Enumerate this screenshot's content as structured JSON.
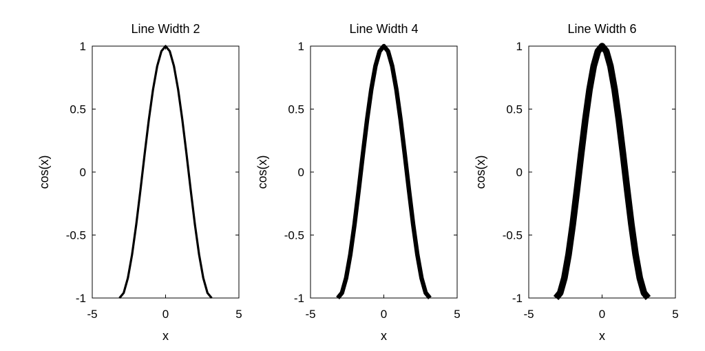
{
  "chart_data": [
    {
      "type": "line",
      "title": "Line Width 2",
      "xlabel": "x",
      "ylabel": "cos(x)",
      "xlim": [
        -5,
        5
      ],
      "ylim": [
        -1,
        1
      ],
      "xticks": [
        "-5",
        "0",
        "5"
      ],
      "yticks": [
        "-1",
        "-0.5",
        "0",
        "0.5",
        "1"
      ],
      "line_width": 2,
      "color": "#000000",
      "grid": false,
      "x": [
        -3.1416,
        -2.856,
        -2.5704,
        -2.2848,
        -1.9992,
        -1.7136,
        -1.428,
        -1.1424,
        -0.8568,
        -0.5712,
        -0.2856,
        0.0,
        0.2856,
        0.5712,
        0.8568,
        1.1424,
        1.428,
        1.7136,
        1.9992,
        2.2848,
        2.5704,
        2.856,
        3.1416
      ],
      "y": [
        -1.0,
        -0.9595,
        -0.8413,
        -0.6549,
        -0.4154,
        -0.1423,
        0.1423,
        0.4154,
        0.6549,
        0.8413,
        0.9595,
        1.0,
        0.9595,
        0.8413,
        0.6549,
        0.4154,
        0.1423,
        -0.1423,
        -0.4154,
        -0.6549,
        -0.8413,
        -0.9595,
        -1.0
      ]
    },
    {
      "type": "line",
      "title": "Line Width 4",
      "xlabel": "x",
      "ylabel": "cos(x)",
      "xlim": [
        -5,
        5
      ],
      "ylim": [
        -1,
        1
      ],
      "xticks": [
        "-5",
        "0",
        "5"
      ],
      "yticks": [
        "-1",
        "-0.5",
        "0",
        "0.5",
        "1"
      ],
      "line_width": 4,
      "color": "#000000",
      "grid": false,
      "x": [
        -3.1416,
        -2.856,
        -2.5704,
        -2.2848,
        -1.9992,
        -1.7136,
        -1.428,
        -1.1424,
        -0.8568,
        -0.5712,
        -0.2856,
        0.0,
        0.2856,
        0.5712,
        0.8568,
        1.1424,
        1.428,
        1.7136,
        1.9992,
        2.2848,
        2.5704,
        2.856,
        3.1416
      ],
      "y": [
        -1.0,
        -0.9595,
        -0.8413,
        -0.6549,
        -0.4154,
        -0.1423,
        0.1423,
        0.4154,
        0.6549,
        0.8413,
        0.9595,
        1.0,
        0.9595,
        0.8413,
        0.6549,
        0.4154,
        0.1423,
        -0.1423,
        -0.4154,
        -0.6549,
        -0.8413,
        -0.9595,
        -1.0
      ]
    },
    {
      "type": "line",
      "title": "Line Width 6",
      "xlabel": "x",
      "ylabel": "cos(x)",
      "xlim": [
        -5,
        5
      ],
      "ylim": [
        -1,
        1
      ],
      "xticks": [
        "-5",
        "0",
        "5"
      ],
      "yticks": [
        "-1",
        "-0.5",
        "0",
        "0.5",
        "1"
      ],
      "line_width": 6,
      "color": "#000000",
      "grid": false,
      "x": [
        -3.1416,
        -2.856,
        -2.5704,
        -2.2848,
        -1.9992,
        -1.7136,
        -1.428,
        -1.1424,
        -0.8568,
        -0.5712,
        -0.2856,
        0.0,
        0.2856,
        0.5712,
        0.8568,
        1.1424,
        1.428,
        1.7136,
        1.9992,
        2.2848,
        2.5704,
        2.856,
        3.1416
      ],
      "y": [
        -1.0,
        -0.9595,
        -0.8413,
        -0.6549,
        -0.4154,
        -0.1423,
        0.1423,
        0.4154,
        0.6549,
        0.8413,
        0.9595,
        1.0,
        0.9595,
        0.8413,
        0.6549,
        0.4154,
        0.1423,
        -0.1423,
        -0.4154,
        -0.6549,
        -0.8413,
        -0.9595,
        -1.0
      ]
    }
  ]
}
